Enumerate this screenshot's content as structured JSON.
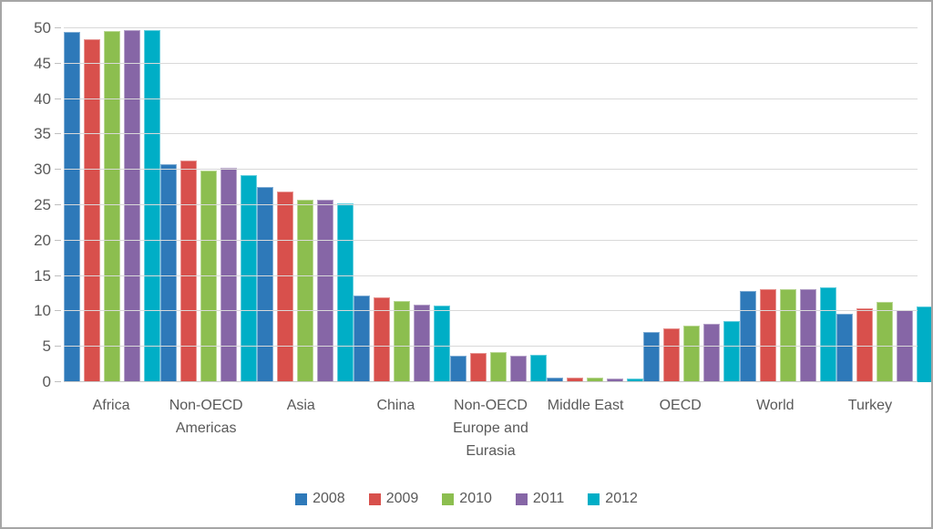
{
  "chart_data": {
    "type": "bar",
    "title": "",
    "xlabel": "",
    "ylabel": "",
    "categories": [
      "Africa",
      "Non-OECD Americas",
      "Asia",
      "China",
      "Non-OECD Europe and Eurasia",
      "Middle East",
      "OECD",
      "World",
      "Turkey"
    ],
    "series": [
      {
        "name": "2008",
        "color": "#2e79b9",
        "values": [
          49.5,
          30.8,
          27.6,
          12.3,
          3.8,
          0.6,
          7.1,
          12.9,
          9.7
        ]
      },
      {
        "name": "2009",
        "color": "#d8504c",
        "values": [
          48.5,
          31.3,
          26.9,
          12.0,
          4.1,
          0.6,
          7.6,
          13.2,
          10.4
        ]
      },
      {
        "name": "2010",
        "color": "#8cbe4f",
        "values": [
          49.6,
          29.9,
          25.8,
          11.5,
          4.2,
          0.6,
          8.0,
          13.1,
          11.3
        ]
      },
      {
        "name": "2011",
        "color": "#8666a6",
        "values": [
          49.7,
          30.3,
          25.8,
          10.9,
          3.7,
          0.5,
          8.3,
          13.1,
          10.2
        ]
      },
      {
        "name": "2012",
        "color": "#00aec6",
        "values": [
          49.7,
          29.2,
          25.3,
          10.8,
          3.9,
          0.5,
          8.6,
          13.4,
          10.7
        ]
      }
    ],
    "ylim": [
      0,
      50
    ],
    "yticks": [
      0,
      5,
      10,
      15,
      20,
      25,
      30,
      35,
      40,
      45,
      50
    ],
    "grid": "horizontal",
    "legend_position": "bottom"
  },
  "style": {
    "axis_text_color": "#595959",
    "gridline_color": "#d9d9d9",
    "figure_border_color": "#a6a6a6",
    "background_color": "#ffffff"
  }
}
